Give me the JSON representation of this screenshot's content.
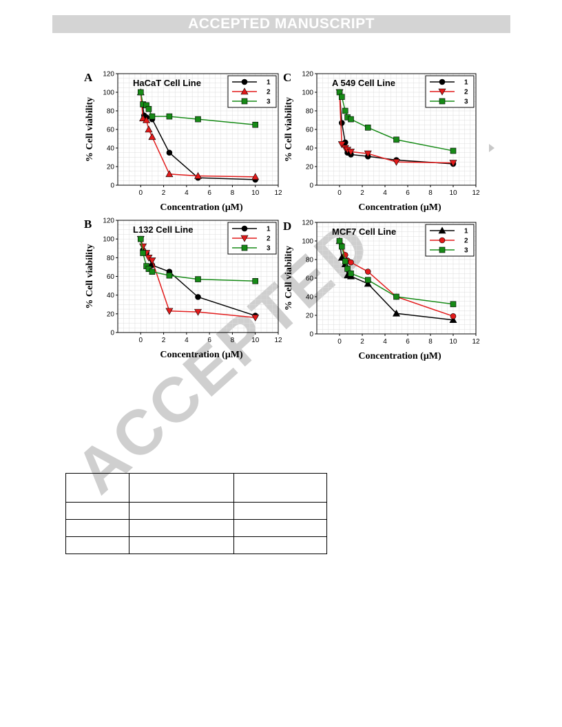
{
  "banner": "ACCEPTED MANUSCRIPT",
  "watermark": "ACCEPTED",
  "colors": {
    "series1": "#000000",
    "series2": "#e21a1a",
    "series3": "#168a16",
    "banner_bg": "#d4d4d4"
  },
  "chart_data": [
    {
      "panel": "A",
      "title": "HaCaT Cell Line",
      "type": "line",
      "xlabel": "Concentration (μM)",
      "ylabel": "% Cell viability",
      "xlim": [
        -2,
        12
      ],
      "ylim": [
        0,
        120
      ],
      "xticks": [
        0,
        2,
        4,
        6,
        8,
        10,
        12
      ],
      "yticks": [
        0,
        20,
        40,
        60,
        80,
        100,
        120
      ],
      "grid": true,
      "legend": "top-right",
      "series": [
        {
          "name": "1",
          "marker": "circle",
          "x": [
            0,
            0.3,
            0.5,
            1,
            2.5,
            5,
            10
          ],
          "y": [
            100,
            75,
            73,
            71,
            35,
            8,
            6
          ]
        },
        {
          "name": "2",
          "marker": "triangle-up",
          "x": [
            0,
            0.2,
            0.5,
            0.7,
            1,
            2.5,
            5,
            10
          ],
          "y": [
            100,
            72,
            70,
            60,
            52,
            12,
            10,
            9
          ]
        },
        {
          "name": "3",
          "marker": "square",
          "x": [
            0,
            0.2,
            0.5,
            0.7,
            1,
            2.5,
            5,
            10
          ],
          "y": [
            100,
            87,
            86,
            82,
            74,
            74,
            71,
            65
          ]
        }
      ]
    },
    {
      "panel": "C",
      "title": "A 549 Cell Line",
      "type": "line",
      "xlabel": "Concentration (μM)",
      "ylabel": "% Cell viability",
      "xlim": [
        -2,
        12
      ],
      "ylim": [
        0,
        120
      ],
      "xticks": [
        0,
        2,
        4,
        6,
        8,
        10,
        12
      ],
      "yticks": [
        0,
        20,
        40,
        60,
        80,
        100,
        120
      ],
      "grid": true,
      "legend": "top-right",
      "series": [
        {
          "name": "1",
          "marker": "circle",
          "x": [
            0,
            0.2,
            0.5,
            0.7,
            1,
            2.5,
            5,
            10
          ],
          "y": [
            100,
            67,
            46,
            35,
            33,
            31,
            27,
            23
          ]
        },
        {
          "name": "2",
          "marker": "triangle-down",
          "x": [
            0,
            0.2,
            0.5,
            0.7,
            1,
            2.5,
            5,
            10
          ],
          "y": [
            100,
            44,
            40,
            38,
            36,
            34,
            25,
            24
          ]
        },
        {
          "name": "3",
          "marker": "square",
          "x": [
            0,
            0.2,
            0.5,
            0.7,
            1,
            2.5,
            5,
            10
          ],
          "y": [
            100,
            95,
            80,
            73,
            71,
            62,
            49,
            37
          ]
        }
      ]
    },
    {
      "panel": "B",
      "title": "L132 Cell Line",
      "type": "line",
      "xlabel": "Concentration (μM)",
      "ylabel": "% Cell viability",
      "xlim": [
        -2,
        12
      ],
      "ylim": [
        0,
        120
      ],
      "xticks": [
        0,
        2,
        4,
        6,
        8,
        10,
        12
      ],
      "yticks": [
        0,
        20,
        40,
        60,
        80,
        100,
        120
      ],
      "grid": true,
      "legend": "top-right",
      "series": [
        {
          "name": "1",
          "marker": "circle",
          "x": [
            0,
            0.2,
            0.5,
            1,
            2.5,
            5,
            10
          ],
          "y": [
            100,
            88,
            85,
            72,
            65,
            38,
            18
          ]
        },
        {
          "name": "2",
          "marker": "triangle-down",
          "x": [
            0,
            0.2,
            0.5,
            0.7,
            1,
            2.5,
            5,
            10
          ],
          "y": [
            100,
            92,
            85,
            80,
            77,
            23,
            22,
            16
          ]
        },
        {
          "name": "3",
          "marker": "square",
          "x": [
            0,
            0.2,
            0.5,
            0.7,
            1,
            2.5,
            5,
            10
          ],
          "y": [
            100,
            85,
            71,
            68,
            65,
            61,
            57,
            55
          ]
        }
      ]
    },
    {
      "panel": "D",
      "title": "MCF7 Cell Line",
      "type": "line",
      "xlabel": "Concentration (μM)",
      "ylabel": "% Cell viability",
      "xlim": [
        -2,
        12
      ],
      "ylim": [
        0,
        120
      ],
      "xticks": [
        0,
        2,
        4,
        6,
        8,
        10,
        12
      ],
      "yticks": [
        0,
        20,
        40,
        60,
        80,
        100,
        120
      ],
      "grid": true,
      "legend": "top-right",
      "series": [
        {
          "name": "1",
          "marker": "triangle-up",
          "x": [
            0,
            0.2,
            0.5,
            0.7,
            1,
            2.5,
            5,
            10
          ],
          "y": [
            100,
            82,
            75,
            63,
            62,
            54,
            22,
            15
          ]
        },
        {
          "name": "2",
          "marker": "circle",
          "x": [
            0,
            0.2,
            0.5,
            0.7,
            1,
            2.5,
            5,
            10
          ],
          "y": [
            100,
            95,
            85,
            79,
            77,
            67,
            40,
            19
          ]
        },
        {
          "name": "3",
          "marker": "square",
          "x": [
            0,
            0.2,
            0.5,
            0.7,
            1,
            2.5,
            5,
            10
          ],
          "y": [
            100,
            94,
            78,
            70,
            65,
            58,
            40,
            32
          ]
        }
      ]
    }
  ],
  "table": {
    "rows": [
      [
        "",
        "",
        ""
      ],
      [
        "",
        "",
        ""
      ],
      [
        "",
        "",
        ""
      ],
      [
        "",
        "",
        ""
      ]
    ]
  }
}
